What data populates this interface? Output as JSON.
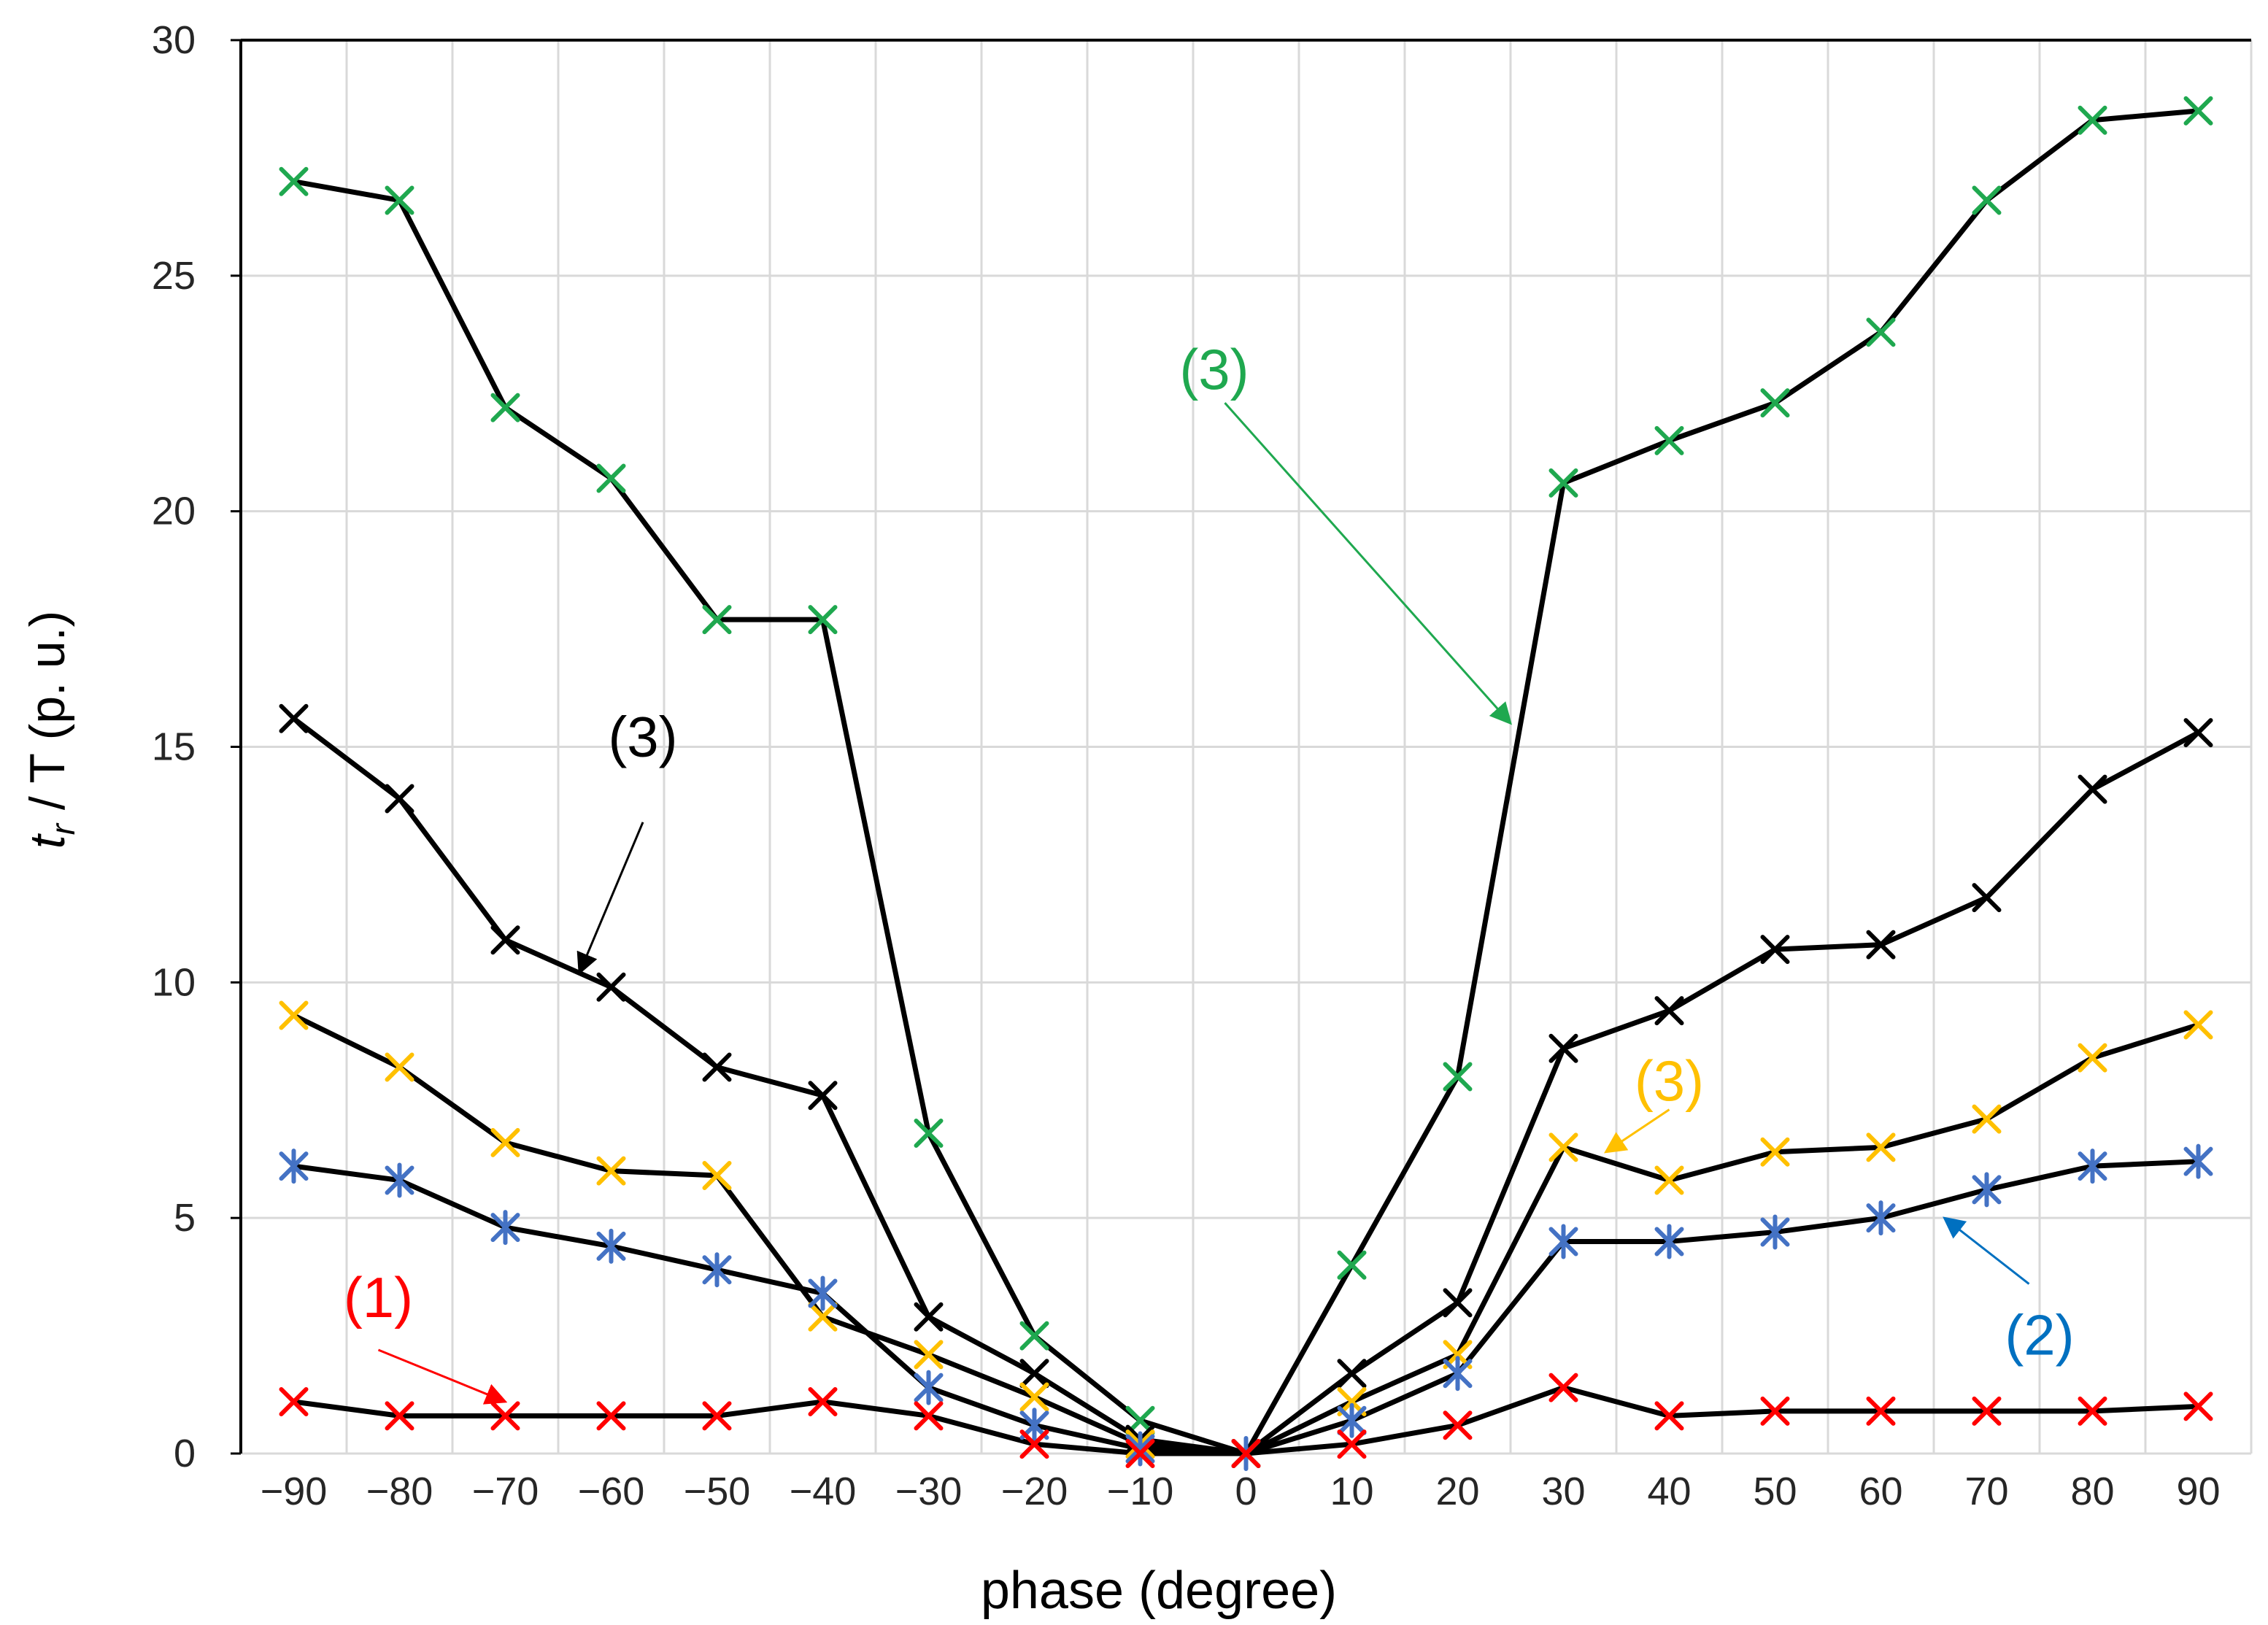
{
  "chart_data": {
    "type": "line",
    "title": "",
    "xlabel": "phase (degree)",
    "ylabel": {
      "t": "t",
      "sub": "r",
      "rest": " / T (p. u.)"
    },
    "x": [
      -90,
      -80,
      -70,
      -60,
      -50,
      -40,
      -30,
      -20,
      -10,
      0,
      10,
      20,
      30,
      40,
      50,
      60,
      70,
      80,
      90
    ],
    "x_tick_labels": [
      "−90",
      "−80",
      "−70",
      "−60",
      "−50",
      "−40",
      "−30",
      "−20",
      "−10",
      "0",
      "10",
      "20",
      "30",
      "40",
      "50",
      "60",
      "70",
      "80",
      "90"
    ],
    "y_ticks": [
      0,
      5,
      10,
      15,
      20,
      25,
      30
    ],
    "xlim": [
      -95,
      95
    ],
    "ylim": [
      0,
      30
    ],
    "grid": true,
    "line_color": "#000000",
    "series": [
      {
        "name": "green",
        "marker": "x",
        "color": "#1fa84f",
        "values": [
          27.0,
          26.6,
          22.2,
          20.7,
          17.7,
          17.7,
          6.8,
          2.5,
          0.7,
          0.0,
          4.0,
          8.0,
          20.6,
          21.5,
          22.3,
          23.8,
          26.6,
          28.3,
          28.5
        ]
      },
      {
        "name": "black",
        "marker": "x",
        "color": "#000000",
        "values": [
          15.6,
          13.9,
          10.9,
          9.9,
          8.2,
          7.6,
          2.9,
          1.7,
          0.3,
          0.0,
          1.7,
          3.2,
          8.6,
          9.4,
          10.7,
          10.8,
          11.8,
          14.1,
          15.3
        ]
      },
      {
        "name": "yellow",
        "marker": "x",
        "color": "#ffc000",
        "values": [
          9.3,
          8.2,
          6.6,
          6.0,
          5.9,
          2.9,
          2.1,
          1.2,
          0.2,
          0.0,
          1.1,
          2.1,
          6.5,
          5.8,
          6.4,
          6.5,
          7.1,
          8.4,
          9.1
        ]
      },
      {
        "name": "blue",
        "marker": "star",
        "color": "#4472c4",
        "values": [
          6.1,
          5.8,
          4.8,
          4.4,
          3.9,
          3.4,
          1.4,
          0.6,
          0.1,
          0.0,
          0.7,
          1.7,
          4.5,
          4.5,
          4.7,
          5.0,
          5.6,
          6.1,
          6.2
        ]
      },
      {
        "name": "red",
        "marker": "x",
        "color": "#ff0000",
        "values": [
          1.1,
          0.8,
          0.8,
          0.8,
          0.8,
          1.1,
          0.8,
          0.2,
          0.0,
          0.0,
          0.2,
          0.6,
          1.4,
          0.8,
          0.9,
          0.9,
          0.9,
          0.9,
          1.0
        ]
      }
    ],
    "annotations": [
      {
        "text": "(3)",
        "color": "#1fa84f",
        "label_at": [
          -3,
          22.6
        ],
        "arrow_from": [
          -2,
          22.3
        ],
        "arrow_to": [
          25,
          15.5
        ]
      },
      {
        "text": "(3)",
        "color": "#000000",
        "label_at": [
          -57,
          14.8
        ],
        "arrow_from": [
          -57,
          13.4
        ],
        "arrow_to": [
          -63,
          10.2
        ]
      },
      {
        "text": "(3)",
        "color": "#ffc000",
        "label_at": [
          40,
          7.5
        ],
        "arrow_from": [
          40,
          7.3
        ],
        "arrow_to": [
          34,
          6.4
        ]
      },
      {
        "text": "(2)",
        "color": "#0070c0",
        "label_at": [
          75,
          2.1
        ],
        "arrow_from": [
          74,
          3.6
        ],
        "arrow_to": [
          66,
          5.0
        ]
      },
      {
        "text": "(1)",
        "color": "#ff0000",
        "label_at": [
          -82,
          2.9
        ],
        "arrow_from": [
          -82,
          2.2
        ],
        "arrow_to": [
          -70,
          1.1
        ]
      }
    ]
  }
}
